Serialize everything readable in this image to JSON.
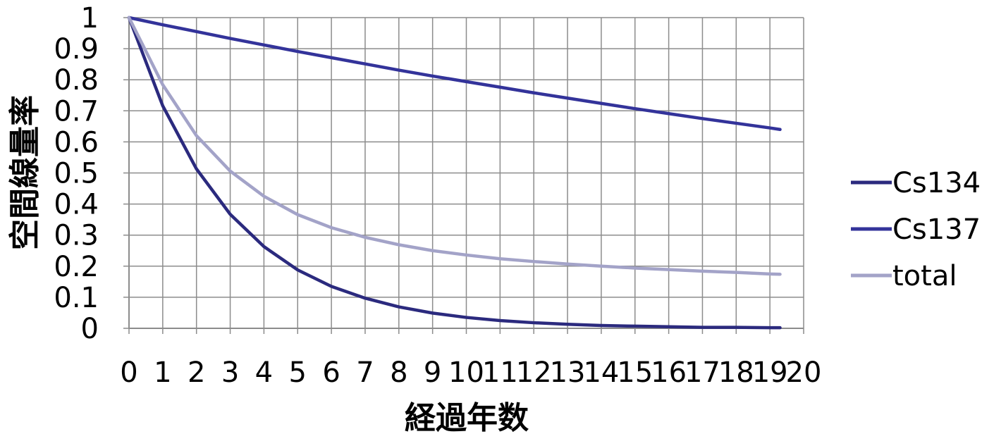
{
  "chart_data": {
    "type": "line",
    "title": "",
    "xlabel": "経過年数",
    "ylabel": "空間線量率",
    "xlim": [
      0,
      20
    ],
    "ylim": [
      0,
      1
    ],
    "x_ticks": [
      "0",
      "1",
      "2",
      "3",
      "4",
      "5",
      "6",
      "7",
      "8",
      "9",
      "10",
      "11",
      "12",
      "13",
      "14",
      "15",
      "16",
      "17",
      "18",
      "19",
      "20"
    ],
    "y_ticks": [
      "0",
      "0.1",
      "0.2",
      "0.3",
      "0.4",
      "0.5",
      "0.6",
      "0.7",
      "0.8",
      "0.9",
      "1"
    ],
    "grid": true,
    "legend_position": "right",
    "series": [
      {
        "name": "Cs134",
        "color": "#2b2a7e",
        "x": [
          0,
          1,
          2,
          3,
          4,
          5,
          6,
          7,
          8,
          9,
          10,
          11,
          12,
          13,
          14,
          15,
          16,
          17,
          18,
          19,
          19.3
        ],
        "values": [
          1.0,
          0.716,
          0.513,
          0.367,
          0.263,
          0.188,
          0.135,
          0.097,
          0.069,
          0.049,
          0.035,
          0.025,
          0.018,
          0.013,
          0.009,
          0.007,
          0.005,
          0.003,
          0.003,
          0.002,
          0.002
        ]
      },
      {
        "name": "Cs137",
        "color": "#33339a",
        "x": [
          0,
          1,
          2,
          3,
          4,
          5,
          6,
          7,
          8,
          9,
          10,
          11,
          12,
          13,
          14,
          15,
          16,
          17,
          18,
          19,
          19.3
        ],
        "values": [
          1.0,
          0.977,
          0.955,
          0.933,
          0.912,
          0.891,
          0.871,
          0.851,
          0.831,
          0.812,
          0.794,
          0.776,
          0.758,
          0.741,
          0.724,
          0.707,
          0.691,
          0.675,
          0.66,
          0.645,
          0.64
        ]
      },
      {
        "name": "total",
        "color": "#a3a3c8",
        "x": [
          0,
          1,
          2,
          3,
          4,
          5,
          6,
          7,
          8,
          9,
          10,
          11,
          12,
          13,
          14,
          15,
          16,
          17,
          18,
          19,
          19.3
        ],
        "values": [
          1.0,
          0.784,
          0.62,
          0.506,
          0.425,
          0.366,
          0.324,
          0.293,
          0.269,
          0.25,
          0.236,
          0.224,
          0.215,
          0.207,
          0.2,
          0.194,
          0.189,
          0.184,
          0.18,
          0.175,
          0.174
        ]
      }
    ]
  }
}
